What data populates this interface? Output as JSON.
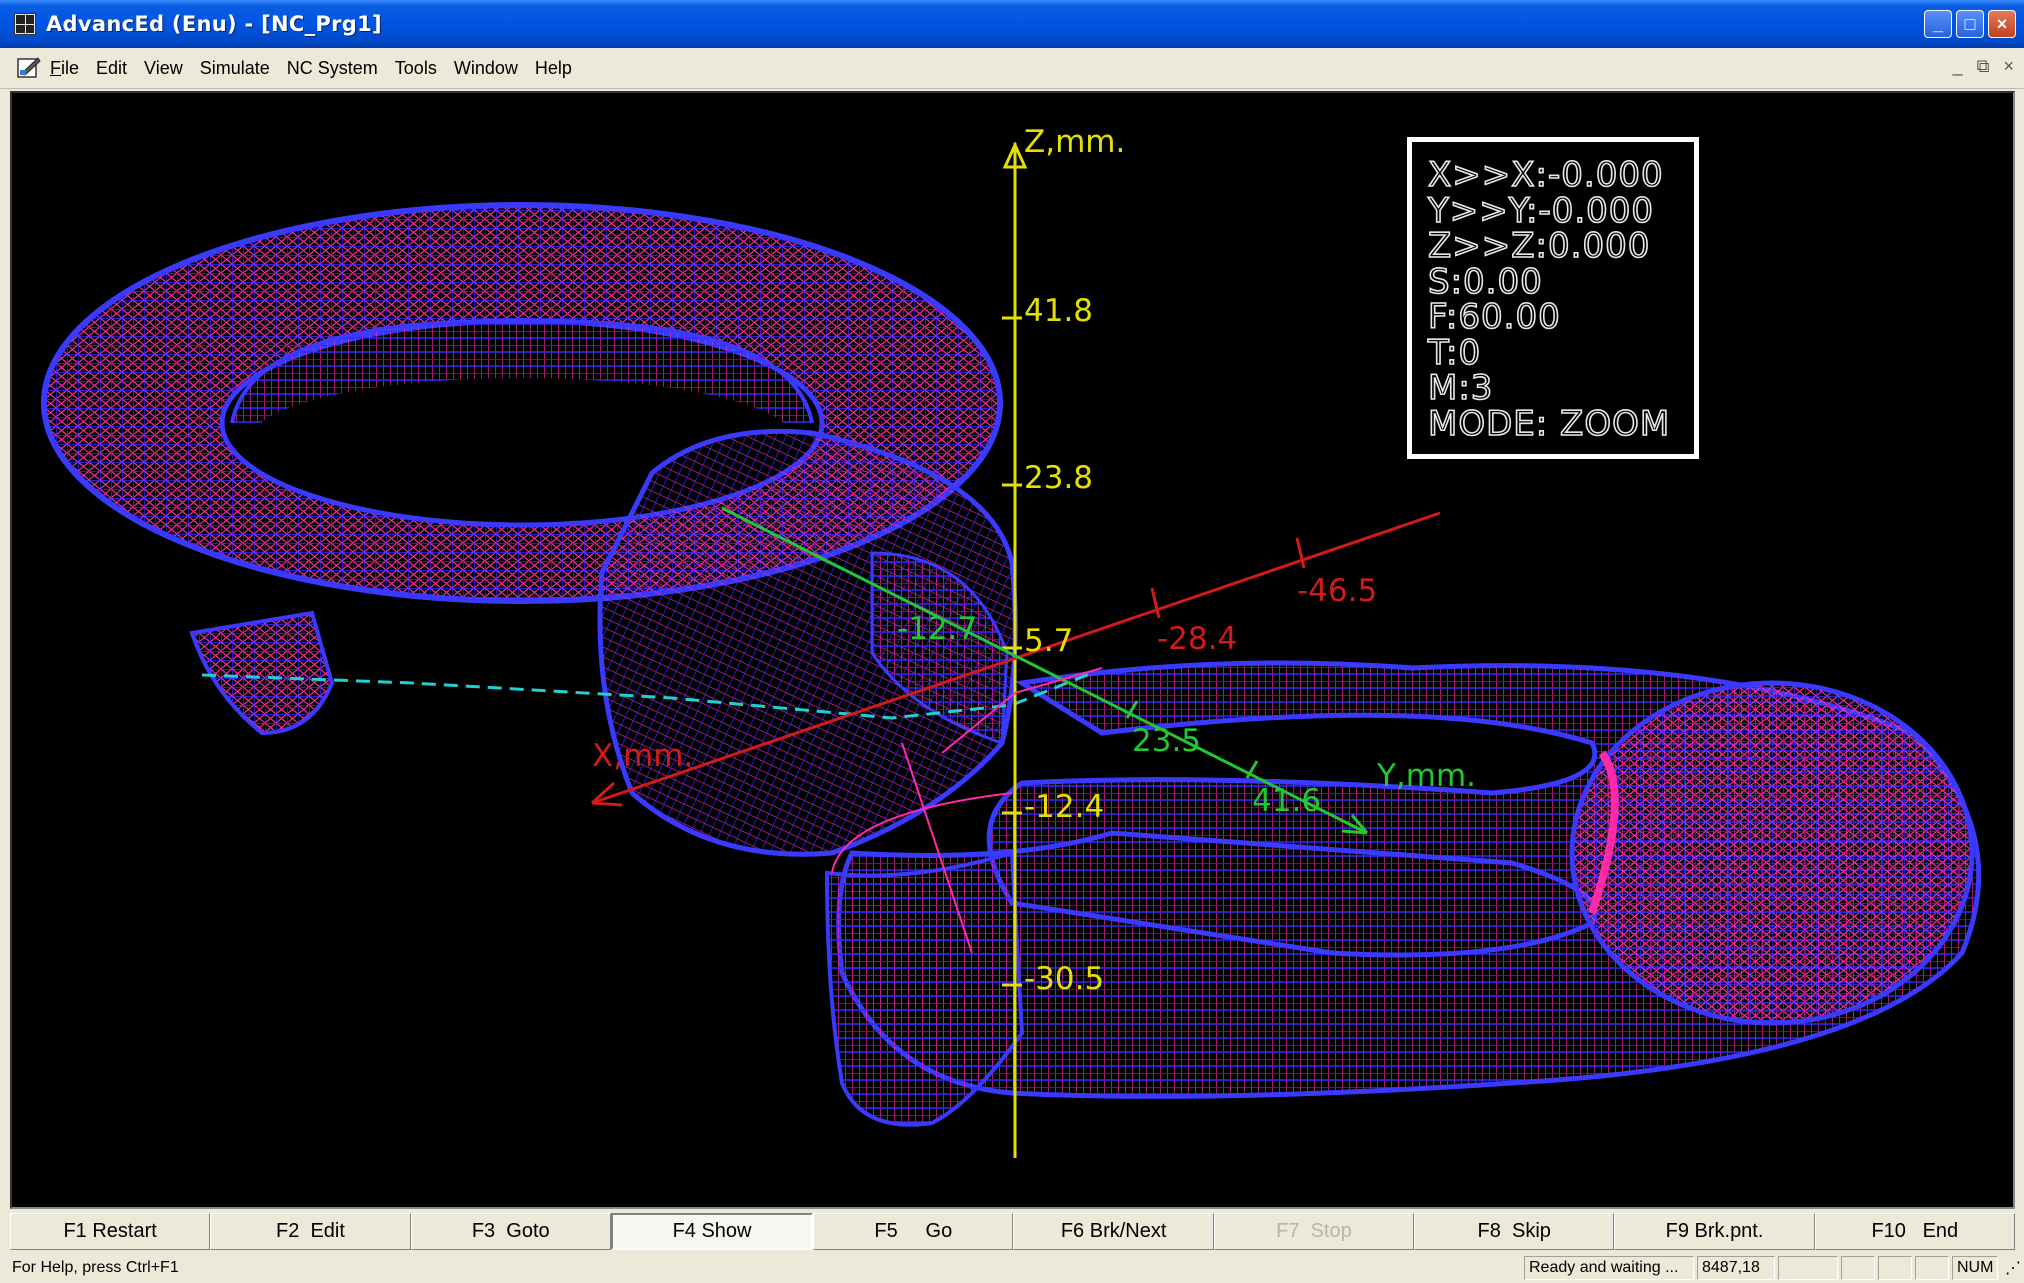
{
  "window": {
    "title": "AdvancEd (Enu) - [NC_Prg1]",
    "buttons": [
      "minimize-icon",
      "maximize-icon",
      "close-icon"
    ]
  },
  "menu": {
    "items": [
      "File",
      "Edit",
      "View",
      "Simulate",
      "NC System",
      "Tools",
      "Window",
      "Help"
    ]
  },
  "viewport": {
    "background": "#000000",
    "readout": {
      "x": "X>>X:-0.000",
      "y": "Y>>Y:-0.000",
      "z": "Z>>Z:0.000",
      "s": "S:0.00",
      "f": "F:60.00",
      "t": "T:0",
      "m": "M:3",
      "mode": "MODE: ZOOM"
    },
    "axes": {
      "z_label": "Z,mm.",
      "z_ticks": [
        "41.8",
        "23.8",
        "5.7",
        "-12.4",
        "-30.5"
      ],
      "x_label": "X,mm.",
      "x_ticks": [
        "-46.5",
        "-28.4",
        "-12.7"
      ],
      "y_label": "Y,mm.",
      "y_ticks": [
        "23.5",
        "41.6"
      ],
      "colors": {
        "z": "#e3e000",
        "x": "#d11a1a",
        "y": "#22c832",
        "mesh_edge": "#2222ff",
        "mesh_fill": "#ff2aa6",
        "path": "#22d0d0"
      }
    }
  },
  "fkeys": [
    {
      "label": "F1 Restart",
      "state": "normal"
    },
    {
      "label": "F2  Edit",
      "state": "normal"
    },
    {
      "label": "F3  Goto",
      "state": "normal"
    },
    {
      "label": "F4 Show",
      "state": "pressed"
    },
    {
      "label": "F5     Go",
      "state": "normal"
    },
    {
      "label": "F6 Brk/Next",
      "state": "normal"
    },
    {
      "label": "F7  Stop",
      "state": "disabled"
    },
    {
      "label": "F8  Skip",
      "state": "normal"
    },
    {
      "label": "F9 Brk.pnt.",
      "state": "normal"
    },
    {
      "label": "F10   End",
      "state": "normal"
    }
  ],
  "status": {
    "help": "For Help, press Ctrl+F1",
    "state": "Ready and waiting ...",
    "coords": "8487,18",
    "num": "NUM"
  }
}
